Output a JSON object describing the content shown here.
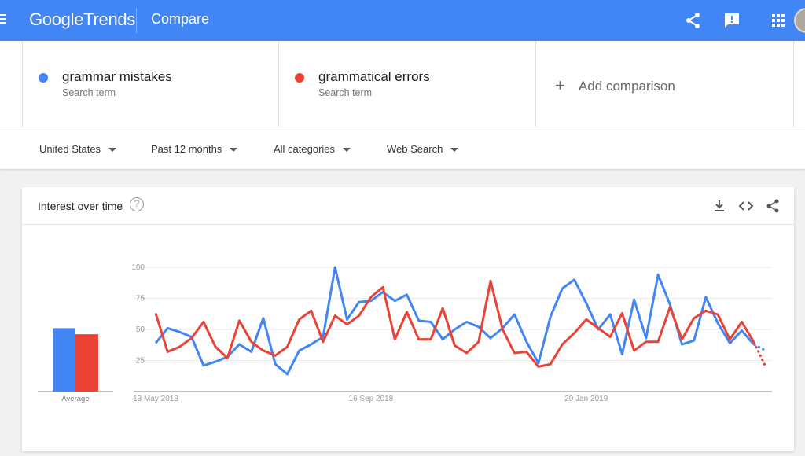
{
  "header": {
    "logo_google": "Google",
    "logo_trends": "Trends",
    "title": "Compare",
    "icons": [
      "hamburger-icon",
      "share-icon",
      "feedback-icon",
      "apps-icon",
      "avatar"
    ]
  },
  "terms": [
    {
      "name": "grammar mistakes",
      "sub": "Search term",
      "color": "#4285f4"
    },
    {
      "name": "grammatical errors",
      "sub": "Search term",
      "color": "#ea4335"
    }
  ],
  "add_comparison": "Add comparison",
  "filters": {
    "region": "United States",
    "time": "Past 12 months",
    "category": "All categories",
    "search_type": "Web Search"
  },
  "card": {
    "title": "Interest over time",
    "icons": [
      "download-icon",
      "embed-icon",
      "share-icon"
    ]
  },
  "chart_data": {
    "type": "line",
    "y_ticks": [
      "100",
      "75",
      "50",
      "25"
    ],
    "ylim": [
      0,
      100
    ],
    "x_ticks": [
      {
        "label": "13 May 2018",
        "index": 0
      },
      {
        "label": "16 Sep 2018",
        "index": 18
      },
      {
        "label": "20 Jan 2019",
        "index": 36
      }
    ],
    "average": {
      "label": "Average",
      "values": [
        52,
        47
      ]
    },
    "series": [
      {
        "name": "grammar mistakes",
        "color": "#4285f4",
        "values": [
          39,
          51,
          48,
          44,
          21,
          24,
          28,
          38,
          32,
          59,
          22,
          14,
          33,
          38,
          44,
          100,
          58,
          72,
          73,
          80,
          73,
          78,
          57,
          56,
          42,
          50,
          56,
          52,
          43,
          51,
          62,
          40,
          23,
          60,
          83,
          90,
          71,
          50,
          62,
          30,
          74,
          43,
          94,
          70,
          38,
          41,
          76,
          55,
          39,
          49,
          38,
          33
        ],
        "partial_from": 50
      },
      {
        "name": "grammatical errors",
        "color": "#ea4335",
        "values": [
          63,
          32,
          36,
          43,
          56,
          36,
          27,
          57,
          40,
          33,
          29,
          36,
          58,
          65,
          40,
          61,
          54,
          61,
          76,
          84,
          42,
          64,
          42,
          42,
          67,
          37,
          31,
          40,
          89,
          50,
          31,
          32,
          20,
          22,
          38,
          47,
          58,
          51,
          44,
          63,
          33,
          40,
          40,
          68,
          42,
          59,
          65,
          62,
          42,
          56,
          40,
          20
        ],
        "partial_from": 50
      }
    ]
  }
}
